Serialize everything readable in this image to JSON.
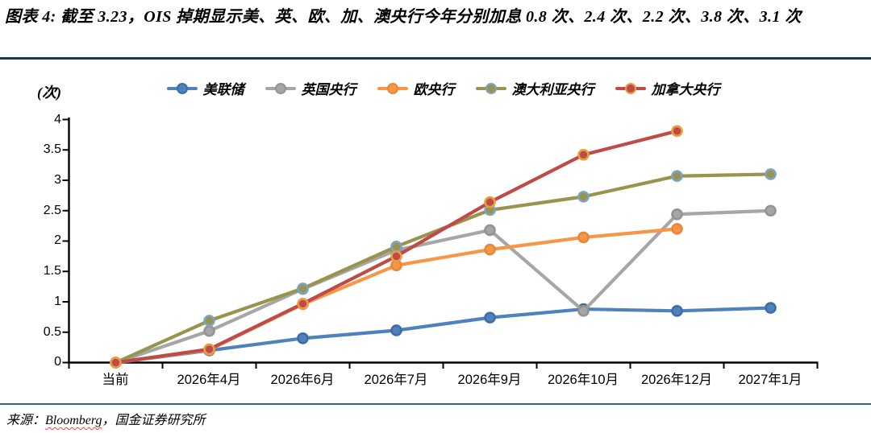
{
  "figure": {
    "title": "图表 4: 截至 3.23，OIS 掉期显示美、英、欧、加、澳央行今年分别加息 0.8 次、2.4 次、2.2 次、3.8 次、3.1 次",
    "source_prefix": "来源：",
    "source_name": "Bloomberg",
    "source_suffix": "，国金证券研究所"
  },
  "chart_data": {
    "type": "line",
    "title": "",
    "unit_label": "(次)",
    "xlabel": "",
    "ylabel": "(次)",
    "ylim": [
      0,
      4
    ],
    "y_tick_step": 0.5,
    "grid": false,
    "legend_position": "top",
    "categories": [
      "当前",
      "2026年4月",
      "2026年6月",
      "2026年7月",
      "2026年9月",
      "2026年10月",
      "2026年12月",
      "2027年1月"
    ],
    "y_ticks": [
      "4",
      "3.5",
      "3",
      "2.5",
      "2",
      "1.5",
      "1",
      "0.5",
      "0"
    ],
    "series": [
      {
        "name": "美联储",
        "color": "#4F81BD",
        "marker_border": "#3D6DA8",
        "values": [
          0,
          0.2,
          0.4,
          0.53,
          0.74,
          0.88,
          0.85,
          0.9
        ]
      },
      {
        "name": "英国央行",
        "color": "#A6A6A6",
        "marker_border": "#939393",
        "values": [
          0,
          0.52,
          1.21,
          1.85,
          2.18,
          0.85,
          2.44,
          2.5
        ]
      },
      {
        "name": "欧央行",
        "color": "#F79646",
        "marker_border": "#E8873B",
        "values": [
          0,
          0.21,
          0.96,
          1.6,
          1.86,
          2.06,
          2.2,
          null
        ]
      },
      {
        "name": "澳大利亚央行",
        "color": "#98944E",
        "marker_border": "#7CA3C4",
        "values": [
          0,
          0.69,
          1.22,
          1.91,
          2.51,
          2.73,
          3.07,
          3.1
        ]
      },
      {
        "name": "加拿大央行",
        "color": "#BE4B48",
        "marker_border": "#EC9C40",
        "values": [
          0,
          0.22,
          0.97,
          1.75,
          2.64,
          3.42,
          3.81,
          null
        ]
      }
    ]
  },
  "colors": {
    "rule_top": "#17375D",
    "rule_bottom": "#2E6787",
    "axis": "#000000",
    "source_underline": "#E8483F"
  }
}
